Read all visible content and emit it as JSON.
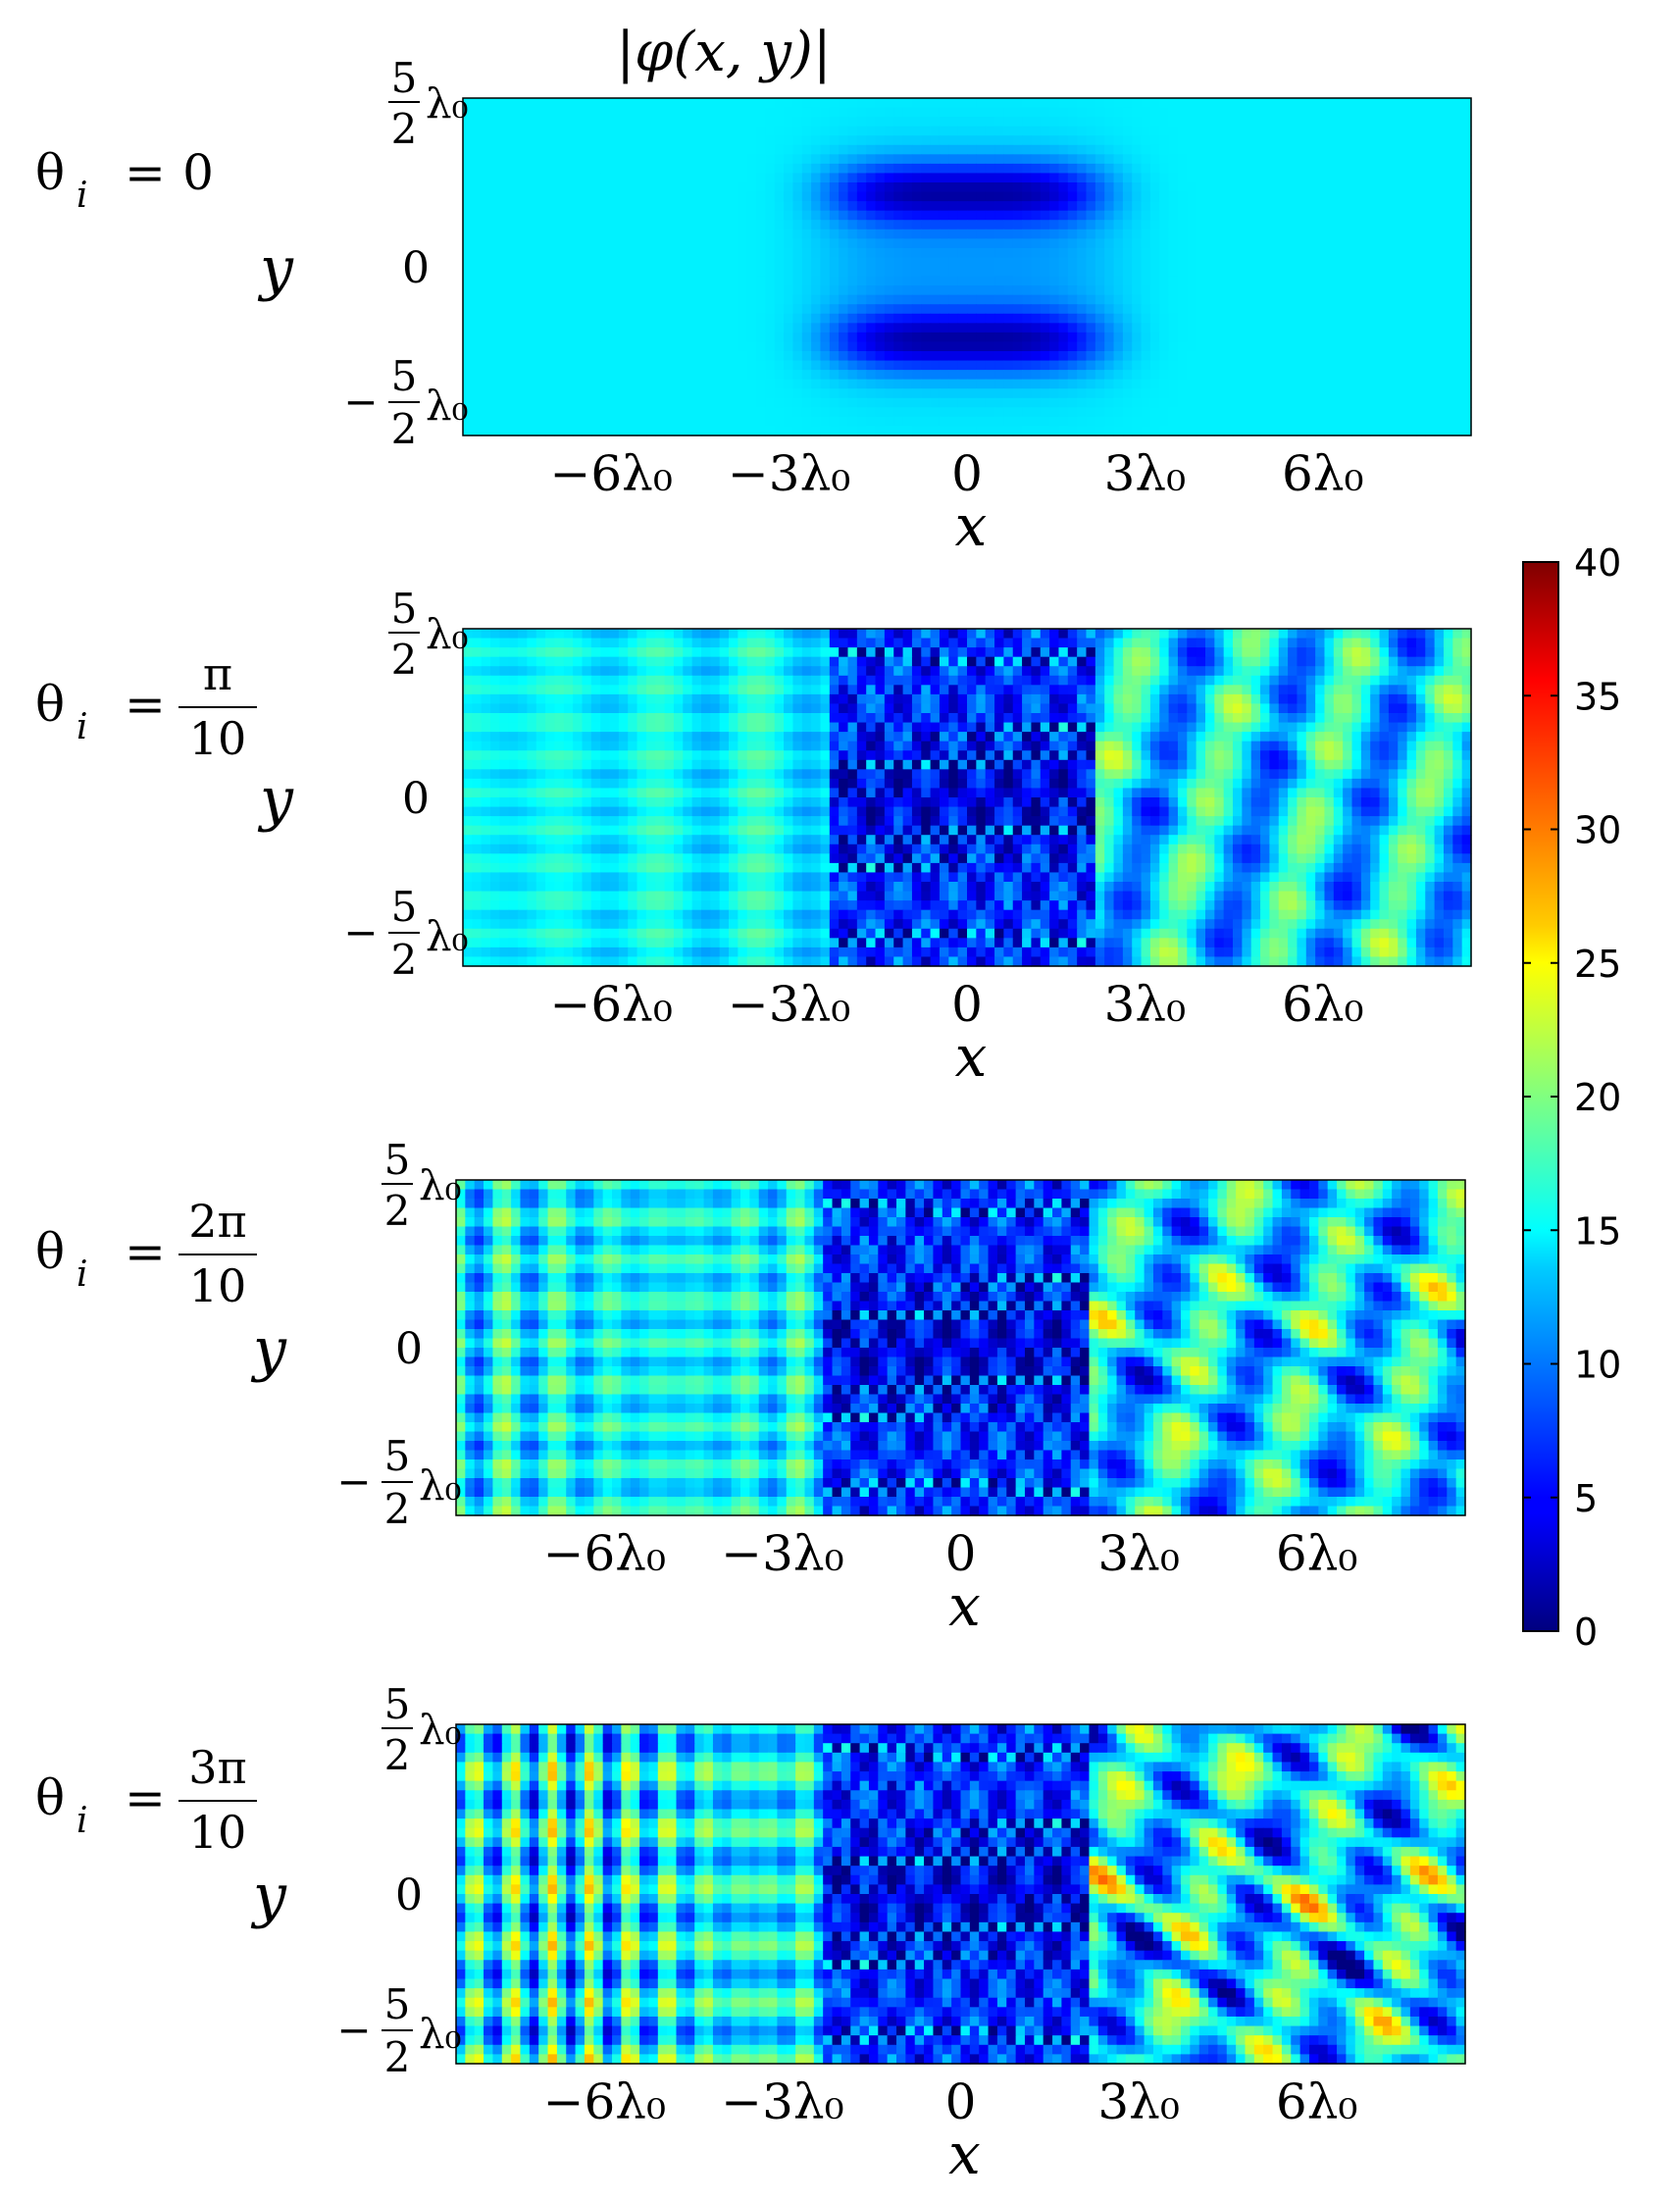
{
  "chart_data": {
    "type": "heatmap",
    "title": "|φ(x, y)|",
    "xlabel": "x",
    "ylabel": "y",
    "x_range_wavelengths": [
      -8.5,
      8.5
    ],
    "y_range_wavelengths": [
      -2.5,
      2.5
    ],
    "x_ticks": [
      {
        "value": -6,
        "label": "−6λ₀"
      },
      {
        "value": -3,
        "label": "−3λ₀"
      },
      {
        "value": 0,
        "label": "0"
      },
      {
        "value": 3,
        "label": "3λ₀"
      },
      {
        "value": 6,
        "label": "6λ₀"
      }
    ],
    "y_ticks": {
      "top_numerator": "5",
      "top_denominator": "2",
      "top_unit": "λ₀",
      "middle": "0",
      "bottom_sign": "−",
      "bottom_numerator": "5",
      "bottom_denominator": "2",
      "bottom_unit": "λ₀"
    },
    "colormap": "jet",
    "colorbar": {
      "min": 0,
      "max": 40,
      "ticks": [
        0,
        5,
        10,
        15,
        20,
        25,
        30,
        35,
        40
      ],
      "tick_labels": [
        "0",
        "5",
        "10",
        "15",
        "20",
        "25",
        "30",
        "35",
        "40"
      ]
    },
    "panels": [
      {
        "theta_label": {
          "lhs": "θ",
          "sub": "i",
          "eq": "=",
          "num": "0",
          "den": ""
        },
        "theta_i": 0
      },
      {
        "theta_label": {
          "lhs": "θ",
          "sub": "i",
          "eq": "=",
          "num": "π",
          "den": "10"
        },
        "theta_i": 0.314159
      },
      {
        "theta_label": {
          "lhs": "θ",
          "sub": "i",
          "eq": "=",
          "num": "2π",
          "den": "10"
        },
        "theta_i": 0.628319
      },
      {
        "theta_label": {
          "lhs": "θ",
          "sub": "i",
          "eq": "=",
          "num": "3π",
          "den": "10"
        },
        "theta_i": 0.942478
      }
    ]
  }
}
